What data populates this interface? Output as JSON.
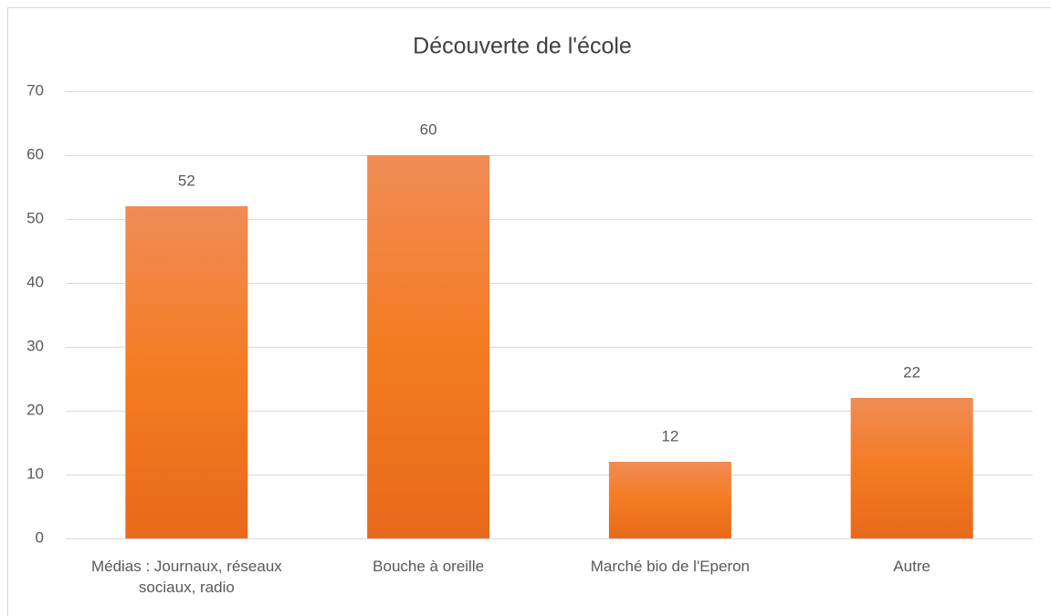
{
  "chart_data": {
    "type": "bar",
    "title": "Découverte de l'école",
    "categories": [
      "Médias : Journaux, réseaux sociaux, radio",
      "Bouche à oreille",
      "Marché bio de l'Eperon",
      "Autre"
    ],
    "values": [
      52,
      60,
      12,
      22
    ],
    "color": "#f07b2b",
    "ylim": [
      0,
      70
    ],
    "yticks": [
      0,
      10,
      20,
      30,
      40,
      50,
      60,
      70
    ],
    "grid": true
  }
}
